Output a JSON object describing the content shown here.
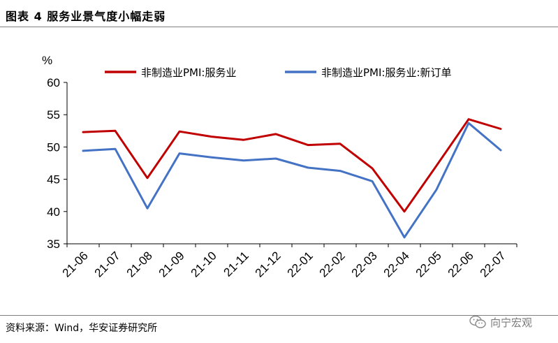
{
  "figure": {
    "title": "图表 4 服务业景气度小幅走弱",
    "source": "资料来源：Wind，华安证券研究所",
    "watermark": "向宁宏观"
  },
  "chart_data": {
    "type": "line",
    "title": "服务业景气度小幅走弱",
    "xlabel": "",
    "ylabel": "%",
    "ylim": [
      35,
      60
    ],
    "yticks": [
      35,
      40,
      45,
      50,
      55,
      60
    ],
    "categories": [
      "21-06",
      "21-07",
      "21-08",
      "21-09",
      "21-10",
      "21-11",
      "21-12",
      "22-01",
      "22-02",
      "22-03",
      "22-04",
      "22-05",
      "22-06",
      "22-07"
    ],
    "series": [
      {
        "name": "非制造业PMI:服务业",
        "color": "#c00000",
        "values": [
          52.3,
          52.5,
          45.2,
          52.4,
          51.6,
          51.1,
          52.0,
          50.3,
          50.5,
          46.7,
          40.0,
          47.1,
          54.3,
          52.8
        ]
      },
      {
        "name": "非制造业PMI:服务业:新订单",
        "color": "#4472c4",
        "values": [
          49.4,
          49.7,
          40.5,
          49.0,
          48.4,
          47.9,
          48.2,
          46.8,
          46.3,
          44.7,
          36.0,
          43.4,
          53.7,
          49.5
        ]
      }
    ],
    "legend": "top",
    "grid": false
  }
}
